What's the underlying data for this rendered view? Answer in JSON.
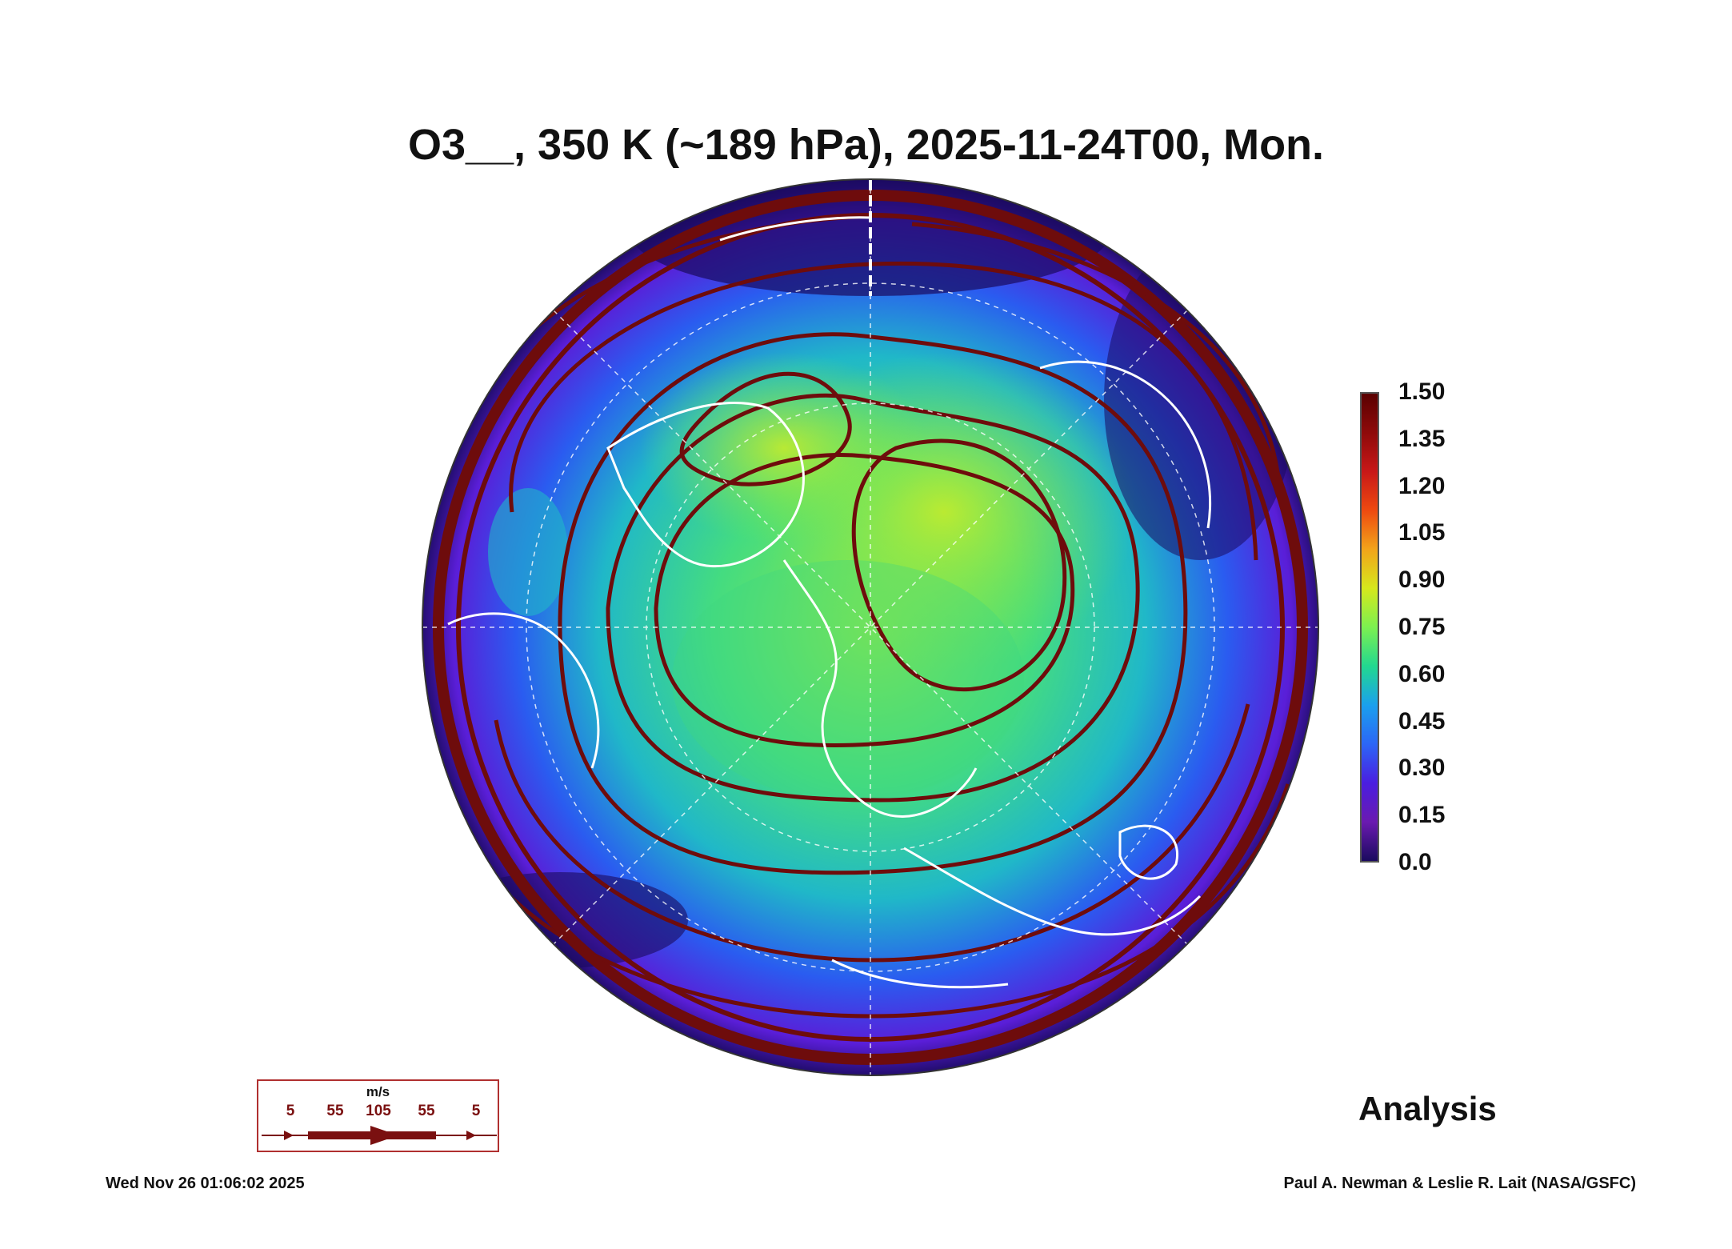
{
  "title": "O3__, 350 K (~189 hPa), 2025-11-24T00, Mon.",
  "colorbar": {
    "ticks": [
      "1.50",
      "1.35",
      "1.20",
      "1.05",
      "0.90",
      "0.75",
      "0.60",
      "0.45",
      "0.30",
      "0.15",
      "0.0"
    ],
    "colors": [
      "#5a0000",
      "#8e0a0a",
      "#c81818",
      "#ee4a10",
      "#f2a41a",
      "#d6e81c",
      "#7cf050",
      "#22d890",
      "#1aa0ee",
      "#2c66f6",
      "#4a1ee0",
      "#6a1ab0",
      "#1a0a5e"
    ]
  },
  "vector_legend": {
    "unit": "m/s",
    "labels": [
      "5",
      "55",
      "105",
      "55",
      "5"
    ]
  },
  "analysis_label": "Analysis",
  "footer": {
    "timestamp": "Wed Nov 26 01:06:02 2025",
    "credit": "Paul A. Newman & Leslie R. Lait (NASA/GSFC)"
  }
}
